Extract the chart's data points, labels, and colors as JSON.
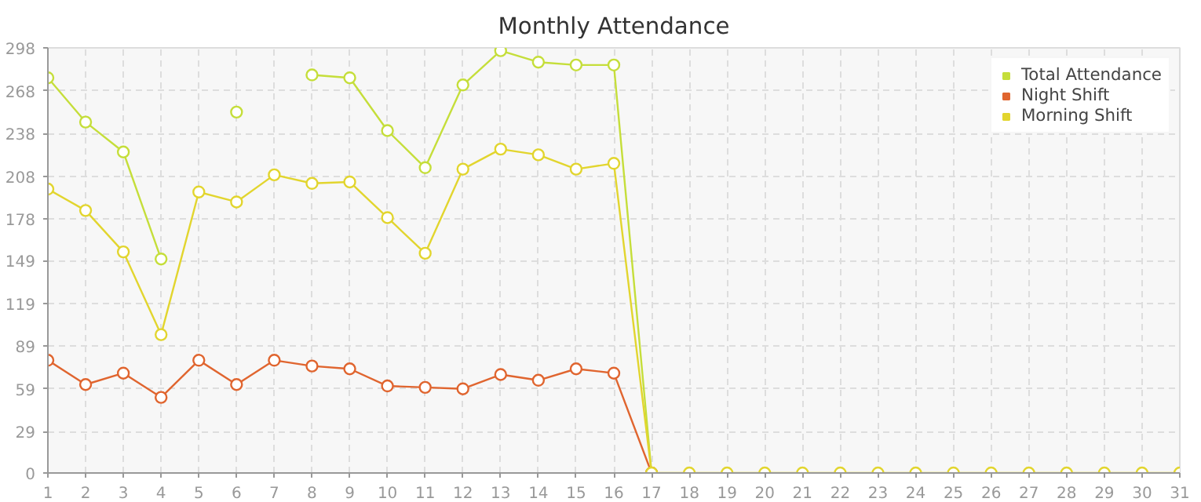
{
  "chart_data": {
    "type": "line",
    "title": "Monthly Attendance",
    "x": [
      1,
      2,
      3,
      4,
      5,
      6,
      7,
      8,
      9,
      10,
      11,
      12,
      13,
      14,
      15,
      16,
      17,
      18,
      19,
      20,
      21,
      22,
      23,
      24,
      25,
      26,
      27,
      28,
      29,
      30,
      31
    ],
    "series": [
      {
        "name": "Total Attendance",
        "color": "#c5de3a",
        "values": [
          277,
          246,
          225,
          150,
          null,
          253,
          null,
          279,
          277,
          240,
          214,
          272,
          296,
          288,
          286,
          286,
          0,
          null,
          null,
          null,
          null,
          null,
          null,
          null,
          null,
          null,
          null,
          null,
          null,
          null,
          null
        ]
      },
      {
        "name": "Night Shift",
        "color": "#e0652f",
        "values": [
          79,
          62,
          70,
          53,
          79,
          62,
          79,
          75,
          73,
          61,
          60,
          59,
          69,
          65,
          73,
          70,
          0,
          null,
          null,
          null,
          null,
          null,
          null,
          null,
          null,
          null,
          null,
          null,
          null,
          null,
          null
        ]
      },
      {
        "name": "Morning Shift",
        "color": "#e2d52e",
        "values": [
          199,
          184,
          155,
          97,
          197,
          190,
          209,
          203,
          204,
          179,
          154,
          213,
          227,
          223,
          213,
          217,
          0,
          0,
          0,
          0,
          0,
          0,
          0,
          0,
          0,
          0,
          0,
          0,
          0,
          0,
          0
        ]
      }
    ],
    "xlim": [
      1,
      31
    ],
    "ylim": [
      0,
      298
    ],
    "xticks": [
      1,
      2,
      3,
      4,
      5,
      6,
      7,
      8,
      9,
      10,
      11,
      12,
      13,
      14,
      15,
      16,
      17,
      18,
      19,
      20,
      21,
      22,
      23,
      24,
      25,
      26,
      27,
      28,
      29,
      30,
      31
    ],
    "yticks": [
      0,
      29,
      59,
      89,
      119,
      149,
      178,
      208,
      238,
      268,
      298
    ],
    "grid": true,
    "legend": "top right",
    "marker": "circle",
    "line_style": "solid"
  }
}
